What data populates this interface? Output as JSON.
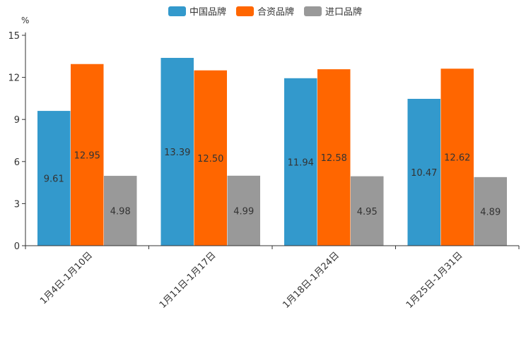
{
  "chart_data": {
    "type": "bar",
    "title": "",
    "xlabel": "",
    "ylabel": "%",
    "ylim": [
      0,
      15
    ],
    "yticks": [
      0,
      3,
      6,
      9,
      12,
      15
    ],
    "grid": false,
    "legend_position": "top-center",
    "categories": [
      "1月4日-1月10日",
      "1月11日-1月17日",
      "1月18日-1月24日",
      "1月25日-1月31日"
    ],
    "series": [
      {
        "name": "中国品牌",
        "color": "#3399cc",
        "values": [
          9.61,
          13.39,
          11.94,
          10.47
        ],
        "labels": [
          "9.61",
          "13.39",
          "11.94",
          "10.47"
        ]
      },
      {
        "name": "合资品牌",
        "color": "#ff6600",
        "values": [
          12.95,
          12.5,
          12.58,
          12.62
        ],
        "labels": [
          "12.95",
          "12.50",
          "12.58",
          "12.62"
        ]
      },
      {
        "name": "进口品牌",
        "color": "#999999",
        "values": [
          4.98,
          4.99,
          4.95,
          4.89
        ],
        "labels": [
          "4.98",
          "4.99",
          "4.95",
          "4.89"
        ]
      }
    ]
  }
}
